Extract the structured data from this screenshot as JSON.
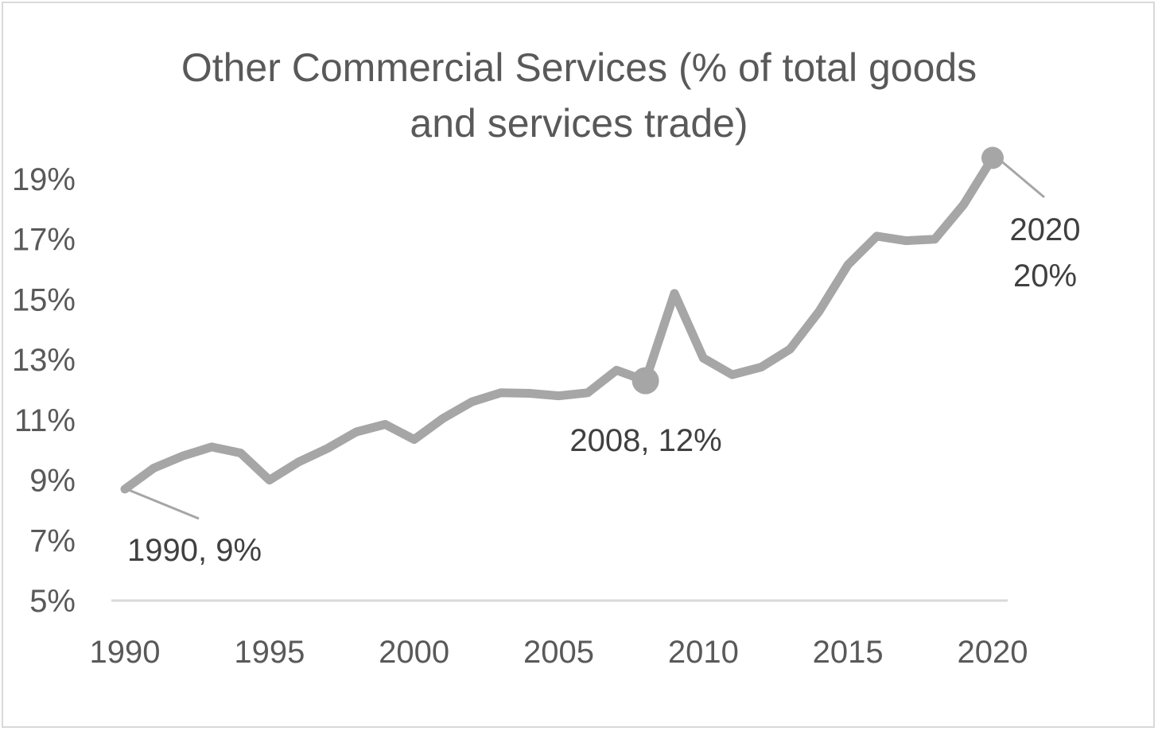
{
  "chart_data": {
    "type": "line",
    "title_lines": [
      "Other Commercial Services (% of total goods",
      "and services trade)"
    ],
    "xlabel": "",
    "ylabel": "",
    "x": [
      1990,
      1991,
      1992,
      1993,
      1994,
      1995,
      1996,
      1997,
      1998,
      1999,
      2000,
      2001,
      2002,
      2003,
      2004,
      2005,
      2006,
      2007,
      2008,
      2009,
      2010,
      2011,
      2012,
      2013,
      2014,
      2015,
      2016,
      2017,
      2018,
      2019,
      2020
    ],
    "series": [
      {
        "name": "Other Commercial Services",
        "color": "#a6a6a6",
        "values": [
          8.7,
          9.4,
          9.8,
          10.1,
          9.9,
          9.0,
          9.6,
          10.05,
          10.6,
          10.85,
          10.35,
          11.05,
          11.6,
          11.9,
          11.88,
          11.8,
          11.9,
          12.65,
          12.3,
          15.2,
          13.05,
          12.5,
          12.75,
          13.35,
          14.6,
          16.15,
          17.1,
          16.95,
          17.0,
          18.15,
          19.7
        ]
      }
    ],
    "xlim": [
      1990,
      2020
    ],
    "ylim": [
      5,
      19
    ],
    "xticks": [
      1990,
      1995,
      2000,
      2005,
      2010,
      2015,
      2020
    ],
    "yticks": [
      5,
      7,
      9,
      11,
      13,
      15,
      17,
      19
    ],
    "xtick_labels": [
      "1990",
      "1995",
      "2000",
      "2005",
      "2010",
      "2015",
      "2020"
    ],
    "ytick_labels": [
      "5%",
      "7%",
      "9%",
      "11%",
      "13%",
      "15%",
      "17%",
      "19%"
    ],
    "grid": false,
    "legend": "none",
    "annotations": [
      {
        "year": 1990,
        "value": 8.7,
        "lines": [
          "1990, 9%"
        ],
        "marker": false,
        "leader_line": true
      },
      {
        "year": 2008,
        "value": 12.3,
        "lines": [
          "2008, 12%"
        ],
        "marker": true,
        "leader_line": false
      },
      {
        "year": 2020,
        "value": 19.7,
        "lines": [
          "2020",
          "20%"
        ],
        "marker": true,
        "leader_line": true
      }
    ]
  }
}
